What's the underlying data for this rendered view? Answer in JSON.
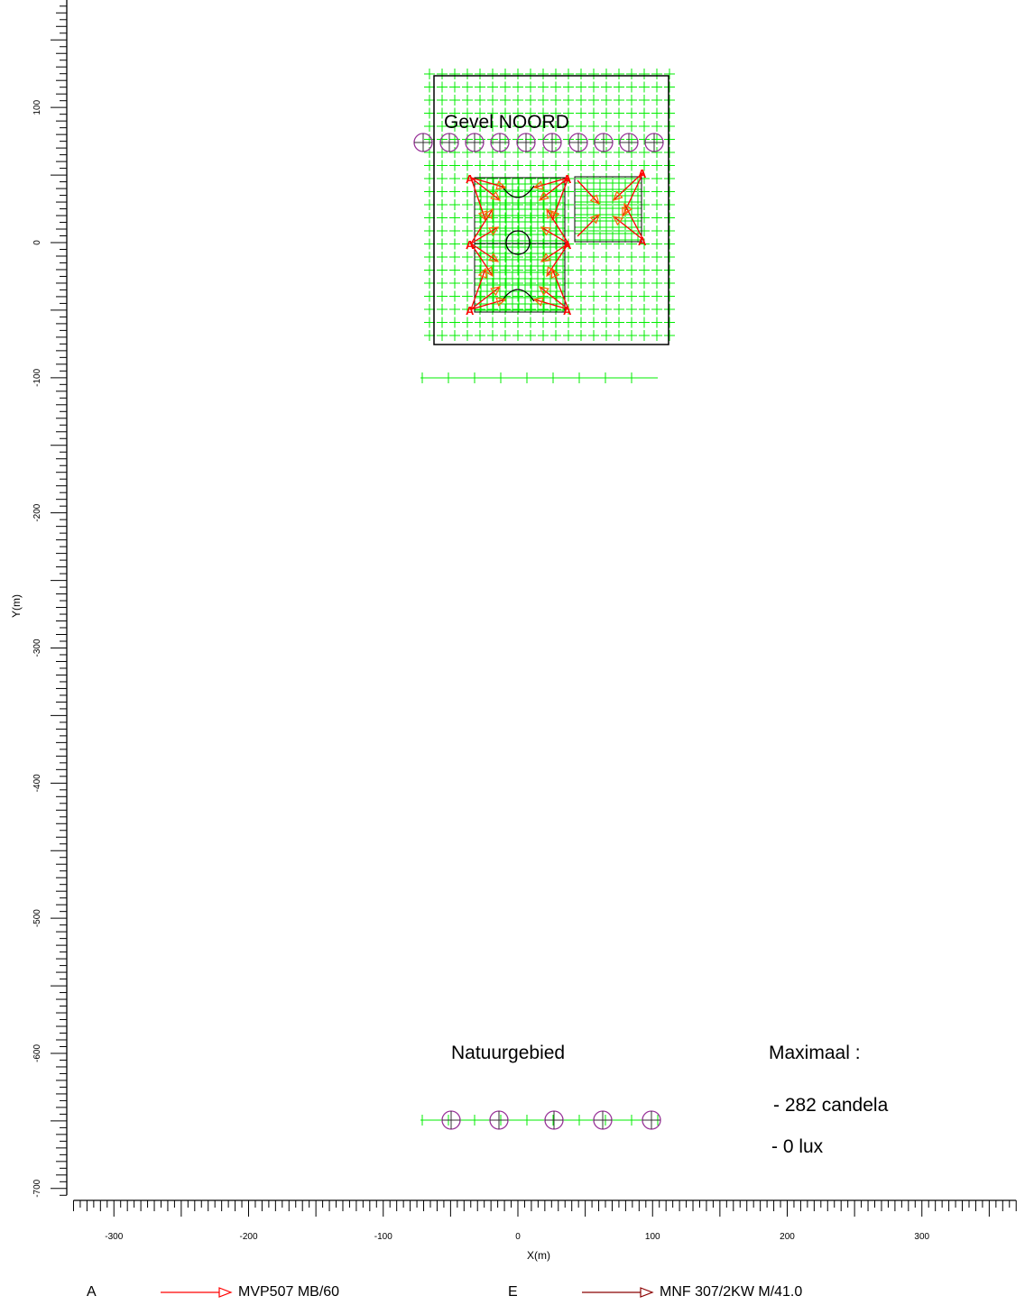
{
  "labels": {
    "gevel": "Gevel NOORD",
    "natuur": "Natuurgebied",
    "maximaal": "Maximaal :",
    "candela": "- 282 candela",
    "lux": "- 0 lux"
  },
  "axes": {
    "xlabel": "X(m)",
    "ylabel": "Y(m)",
    "x_ticks": [
      -300,
      -200,
      -100,
      0,
      100,
      200,
      300
    ],
    "y_ticks": [
      100,
      0,
      -100,
      -200,
      -300,
      -400,
      -500,
      -600,
      -700
    ],
    "x_range": [
      -330,
      370
    ],
    "y_range": [
      -705,
      185
    ]
  },
  "legend": [
    {
      "code": "A",
      "name": "MVP507 MB/60",
      "color": "#ff0000"
    },
    {
      "code": "E",
      "name": "MNF 307/2KW M/41.0",
      "color": "#8b0000"
    }
  ],
  "colors": {
    "grid": "#00ee00",
    "luminaire": "#ff0000",
    "aim": "#ff6600",
    "observer": "#993399",
    "outline": "#000000"
  },
  "markers": {
    "luminaire_code": "A"
  }
}
